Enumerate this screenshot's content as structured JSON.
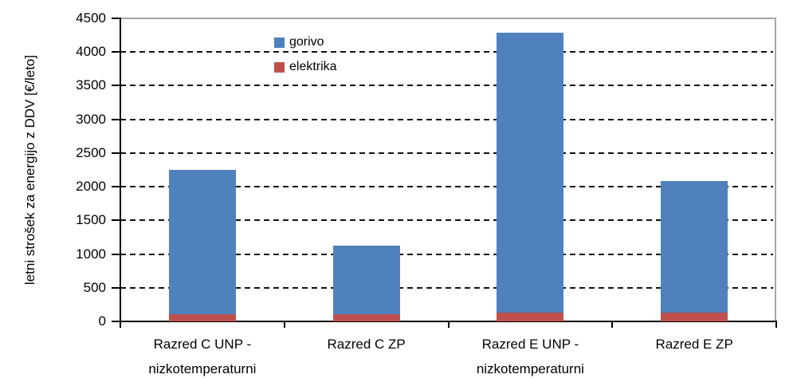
{
  "chart_data": {
    "type": "bar",
    "stacked": true,
    "title": "",
    "ylabel": "letni strošek za energijo z DDV [€/leto]",
    "xlabel": "",
    "ylim": [
      0,
      4500
    ],
    "ytick_step": 500,
    "yticks": [
      0,
      500,
      1000,
      1500,
      2000,
      2500,
      3000,
      3500,
      4000,
      4500
    ],
    "grid": "horizontal-dashed-black",
    "legend_position": "top-left-inside",
    "categories": [
      "Razred C UNP - nizkotemperaturni",
      "Razred C ZP",
      "Razred E UNP - nizkotemperaturni",
      "Razred E ZP"
    ],
    "series": [
      {
        "name": "gorivo",
        "color": "#4F81BD",
        "values": [
          2140,
          1010,
          4160,
          1960
        ]
      },
      {
        "name": "elektrika",
        "color": "#C0504D",
        "values": [
          110,
          110,
          130,
          130
        ]
      }
    ],
    "stack_order_bottom_to_top": [
      "elektrika",
      "gorivo"
    ],
    "stacked_totals": [
      2250,
      1120,
      4290,
      2090
    ]
  },
  "legend": {
    "items": [
      {
        "label": "gorivo",
        "color": "#4F81BD"
      },
      {
        "label": "elektrika",
        "color": "#C0504D"
      }
    ]
  },
  "colors": {
    "axis": "#000000",
    "plot_border": "#A6A6A6",
    "text": "#000000"
  }
}
